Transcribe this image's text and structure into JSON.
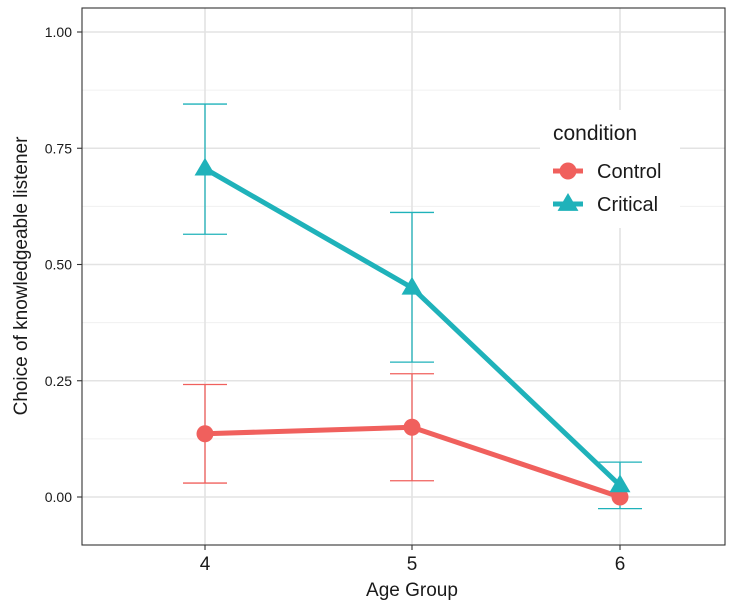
{
  "chart_data": {
    "type": "line",
    "title": "",
    "xlabel": "Age Group",
    "ylabel": "Choice of knowledgeable listener",
    "x": [
      "4",
      "5",
      "6"
    ],
    "ylim": [
      -0.1,
      1.06
    ],
    "yticks": [
      "0.00",
      "0.25",
      "0.50",
      "0.75",
      "1.00"
    ],
    "ytick_values": [
      0,
      0.25,
      0.5,
      0.75,
      1.0
    ],
    "grid": true,
    "legend": {
      "title": "condition",
      "position": "top-right-inside"
    },
    "series": [
      {
        "name": "Control",
        "color": "#F0605D",
        "marker": "circle",
        "values": [
          0.136,
          0.15,
          0.0
        ],
        "error_low": [
          0.03,
          0.035,
          0.0
        ],
        "error_high": [
          0.242,
          0.265,
          0.0
        ]
      },
      {
        "name": "Critical",
        "color": "#1FB2BA",
        "marker": "triangle",
        "values": [
          0.706,
          0.45,
          0.025
        ],
        "error_low": [
          0.565,
          0.29,
          -0.025
        ],
        "error_high": [
          0.845,
          0.612,
          0.075
        ]
      }
    ]
  }
}
